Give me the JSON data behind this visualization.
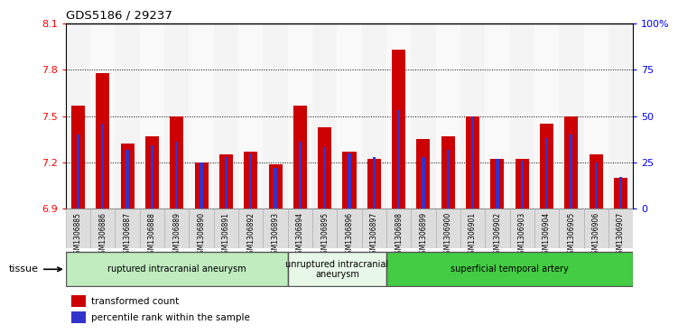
{
  "title": "GDS5186 / 29237",
  "samples": [
    "GSM1306885",
    "GSM1306886",
    "GSM1306887",
    "GSM1306888",
    "GSM1306889",
    "GSM1306890",
    "GSM1306891",
    "GSM1306892",
    "GSM1306893",
    "GSM1306894",
    "GSM1306895",
    "GSM1306896",
    "GSM1306897",
    "GSM1306898",
    "GSM1306899",
    "GSM1306900",
    "GSM1306901",
    "GSM1306902",
    "GSM1306903",
    "GSM1306904",
    "GSM1306905",
    "GSM1306906",
    "GSM1306907"
  ],
  "red_values": [
    7.57,
    7.78,
    7.32,
    7.37,
    7.5,
    7.2,
    7.25,
    7.27,
    7.19,
    7.57,
    7.43,
    7.27,
    7.22,
    7.93,
    7.35,
    7.37,
    7.5,
    7.22,
    7.22,
    7.45,
    7.5,
    7.25,
    7.1
  ],
  "blue_values": [
    40,
    46,
    32,
    34,
    36,
    25,
    28,
    30,
    22,
    36,
    33,
    30,
    28,
    53,
    28,
    32,
    50,
    27,
    26,
    38,
    40,
    25,
    17
  ],
  "groups": [
    {
      "label": "ruptured intracranial aneurysm",
      "start": 0,
      "end": 9,
      "color": "#c0ecc0"
    },
    {
      "label": "unruptured intracranial\naneurysm",
      "start": 9,
      "end": 13,
      "color": "#e8f8e8"
    },
    {
      "label": "superficial temporal artery",
      "start": 13,
      "end": 23,
      "color": "#44cc44"
    }
  ],
  "ylim_left": [
    6.9,
    8.1
  ],
  "ylim_right": [
    0,
    100
  ],
  "yticks_left": [
    6.9,
    7.2,
    7.5,
    7.8,
    8.1
  ],
  "yticks_right": [
    0,
    25,
    50,
    75,
    100
  ],
  "ytick_labels_right": [
    "0",
    "25",
    "50",
    "75",
    "100%"
  ],
  "red_color": "#cc0000",
  "blue_color": "#3333cc",
  "tissue_label": "tissue",
  "legend_red": "transformed count",
  "legend_blue": "percentile rank within the sample"
}
